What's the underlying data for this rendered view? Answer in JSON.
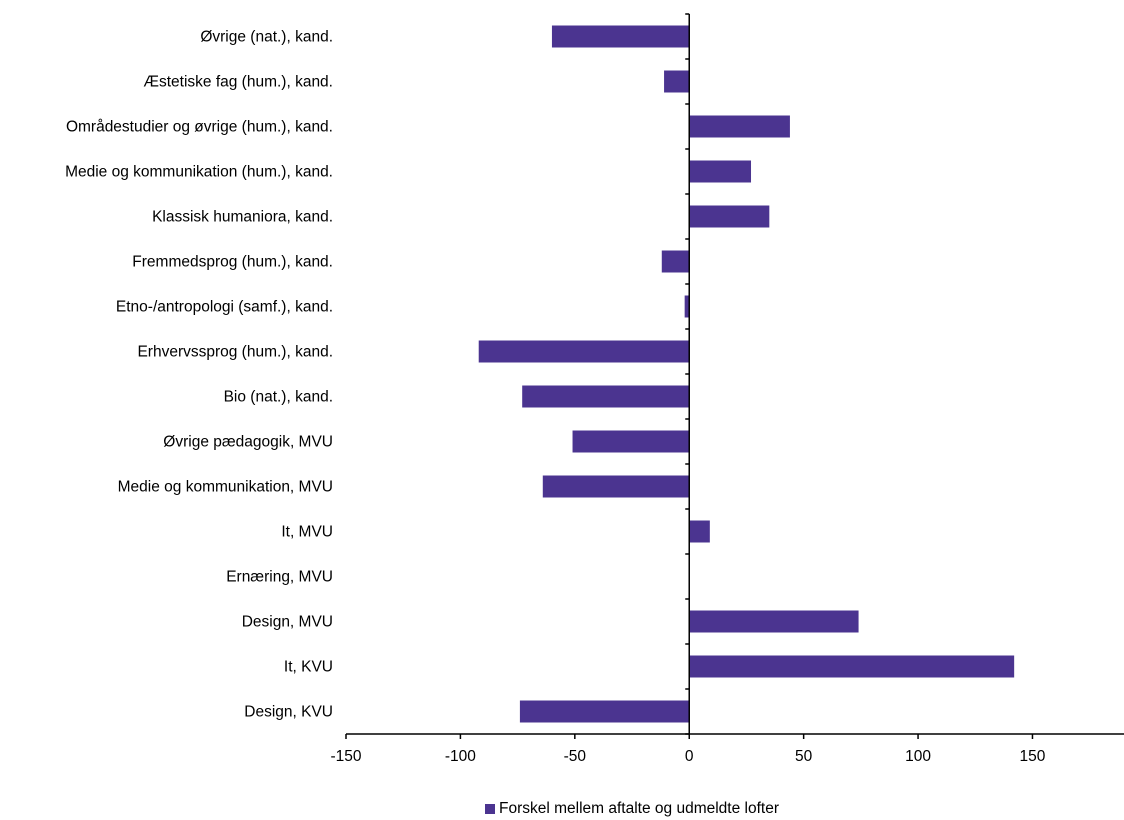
{
  "chart_data": {
    "type": "bar",
    "orientation": "horizontal",
    "categories": [
      "Øvrige (nat.), kand.",
      "Æstetiske fag (hum.), kand.",
      "Områdestudier og øvrige (hum.), kand.",
      "Medie og kommunikation (hum.), kand.",
      "Klassisk humaniora, kand.",
      "Fremmedsprog (hum.), kand.",
      "Etno-/antropologi (samf.), kand.",
      "Erhvervssprog (hum.), kand.",
      "Bio (nat.), kand.",
      "Øvrige pædagogik, MVU",
      "Medie og kommunikation, MVU",
      "It, MVU",
      "Ernæring, MVU",
      "Design, MVU",
      "It, KVU",
      "Design, KVU"
    ],
    "series": [
      {
        "name": "Forskel mellem aftalte og udmeldte lofter",
        "color": "#4B3490",
        "values": [
          -60,
          -11,
          44,
          27,
          35,
          -12,
          -2,
          -92,
          -73,
          -51,
          -64,
          9,
          0,
          74,
          142,
          -74
        ]
      }
    ],
    "xlim": [
      -150,
      190
    ],
    "xticks": [
      -150,
      -100,
      -50,
      0,
      50,
      100,
      150
    ],
    "xtick_labels": [
      "-150",
      "-100",
      "-50",
      "0",
      "50",
      "100",
      "150"
    ],
    "grid": false,
    "legend_position": "bottom"
  }
}
